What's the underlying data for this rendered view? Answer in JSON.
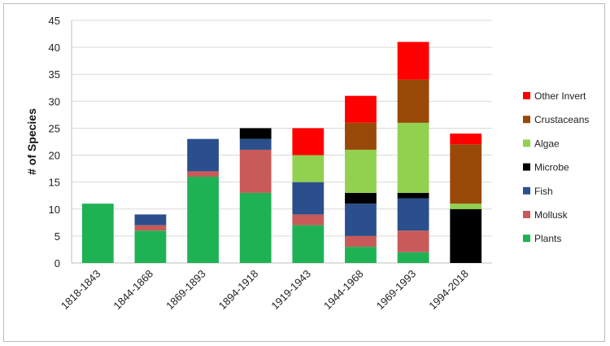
{
  "chart_data": {
    "type": "bar",
    "stacked": true,
    "title": "",
    "xlabel": "",
    "ylabel": "# of Species",
    "ylim": [
      0,
      45
    ],
    "yticks": [
      0,
      5,
      10,
      15,
      20,
      25,
      30,
      35,
      40,
      45
    ],
    "grid": true,
    "legend_position": "right",
    "categories": [
      "1818-1843",
      "1844-1868",
      "1869-1893",
      "1894-1918",
      "1919-1943",
      "1944-1968",
      "1969-1993",
      "1994-2018"
    ],
    "series": [
      {
        "name": "Plants",
        "color": "#1eb254",
        "values": [
          11,
          6,
          16,
          13,
          7,
          3,
          2,
          0
        ]
      },
      {
        "name": "Mollusk",
        "color": "#c85a5a",
        "values": [
          0,
          1,
          1,
          8,
          2,
          2,
          4,
          0
        ]
      },
      {
        "name": "Fish",
        "color": "#2a4f8c",
        "values": [
          0,
          2,
          6,
          2,
          6,
          6,
          6,
          0
        ]
      },
      {
        "name": "Microbe",
        "color": "#000000",
        "values": [
          0,
          0,
          0,
          2,
          0,
          2,
          1,
          10
        ]
      },
      {
        "name": "Algae",
        "color": "#92d050",
        "values": [
          0,
          0,
          0,
          0,
          5,
          8,
          13,
          1
        ]
      },
      {
        "name": "Crustaceans",
        "color": "#984807",
        "values": [
          0,
          0,
          0,
          0,
          0,
          5,
          8,
          11
        ]
      },
      {
        "name": "Other Invert",
        "color": "#ff0000",
        "values": [
          0,
          0,
          0,
          0,
          5,
          5,
          7,
          2
        ]
      }
    ]
  }
}
